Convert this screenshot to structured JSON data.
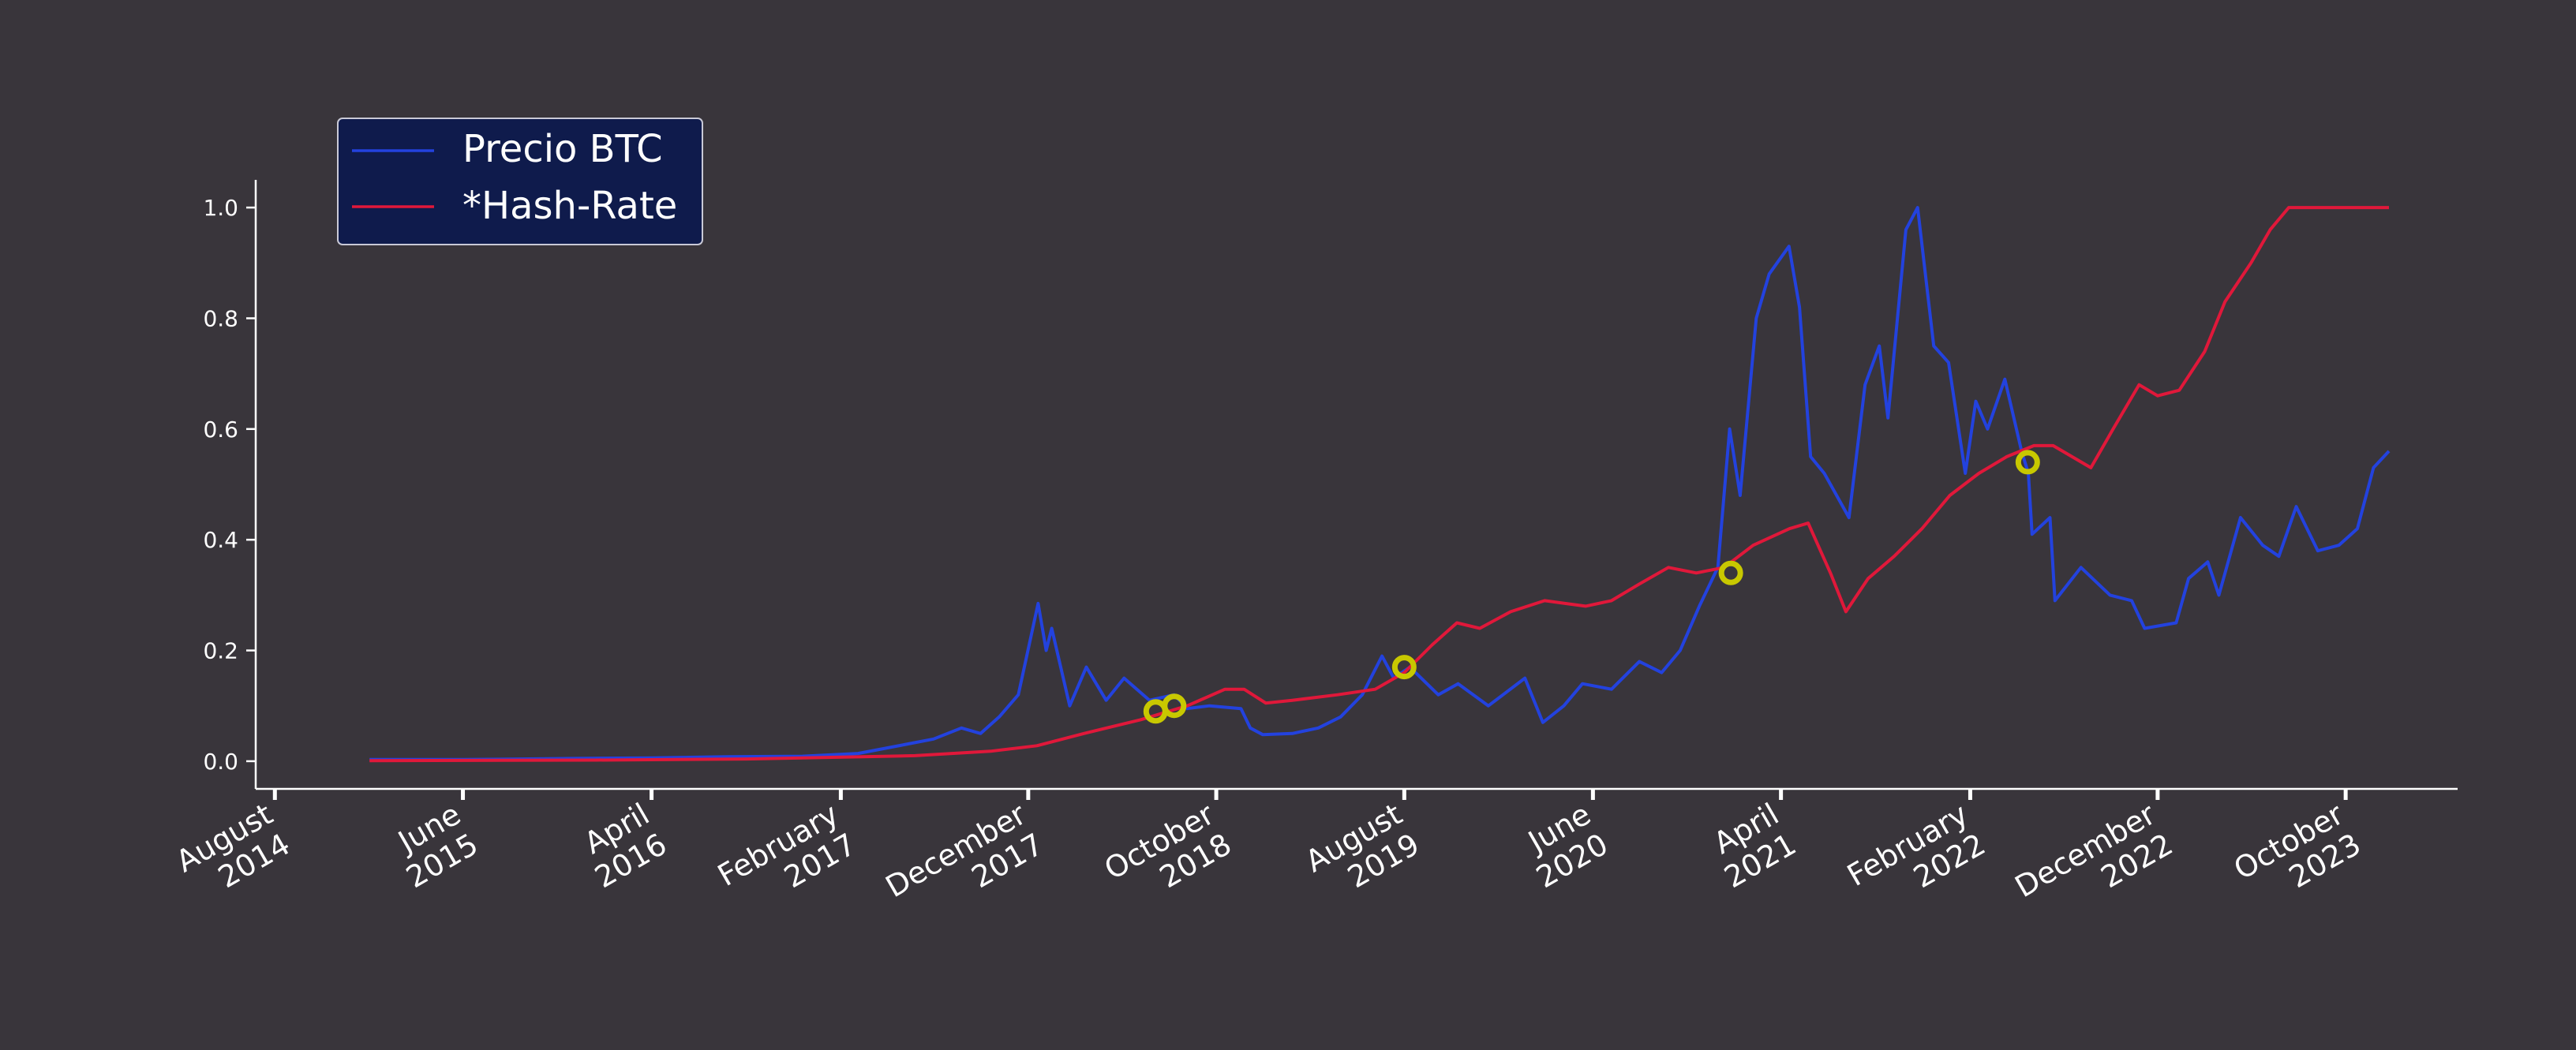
{
  "chart_data": {
    "type": "line",
    "title": "",
    "xlabel": "",
    "ylabel": "",
    "ylim": [
      -0.05,
      1.05
    ],
    "xlim": [
      "2014-07-01",
      "2024-03-30"
    ],
    "grid": false,
    "legend_position": "top-left",
    "background": "#39353b",
    "y_ticks": [
      "0.0",
      "0.2",
      "0.4",
      "0.6",
      "0.8",
      "1.0"
    ],
    "x_ticks": [
      {
        "date": "2014-08-01",
        "line1": "August",
        "line2": "2014"
      },
      {
        "date": "2015-06-01",
        "line1": "June",
        "line2": "2015"
      },
      {
        "date": "2016-04-01",
        "line1": "April",
        "line2": "2016"
      },
      {
        "date": "2017-02-01",
        "line1": "February",
        "line2": "2017"
      },
      {
        "date": "2017-12-01",
        "line1": "December",
        "line2": "2017"
      },
      {
        "date": "2018-10-01",
        "line1": "October",
        "line2": "2018"
      },
      {
        "date": "2019-08-01",
        "line1": "August",
        "line2": "2019"
      },
      {
        "date": "2020-06-01",
        "line1": "June",
        "line2": "2020"
      },
      {
        "date": "2021-04-01",
        "line1": "April",
        "line2": "2021"
      },
      {
        "date": "2022-02-01",
        "line1": "February",
        "line2": "2022"
      },
      {
        "date": "2022-12-01",
        "line1": "December",
        "line2": "2022"
      },
      {
        "date": "2023-10-01",
        "line1": "October",
        "line2": "2023"
      }
    ],
    "series": [
      {
        "name": "Precio BTC",
        "color": "#2342de",
        "points": [
          [
            "2015-01-01",
            0.003
          ],
          [
            "2015-06-01",
            0.003
          ],
          [
            "2015-12-01",
            0.005
          ],
          [
            "2016-04-01",
            0.006
          ],
          [
            "2016-08-01",
            0.008
          ],
          [
            "2016-12-01",
            0.009
          ],
          [
            "2017-03-01",
            0.014
          ],
          [
            "2017-05-15",
            0.03
          ],
          [
            "2017-07-01",
            0.04
          ],
          [
            "2017-08-15",
            0.06
          ],
          [
            "2017-09-15",
            0.05
          ],
          [
            "2017-10-15",
            0.08
          ],
          [
            "2017-11-15",
            0.12
          ],
          [
            "2017-12-17",
            0.285
          ],
          [
            "2017-12-30",
            0.2
          ],
          [
            "2018-01-08",
            0.24
          ],
          [
            "2018-02-06",
            0.1
          ],
          [
            "2018-03-05",
            0.17
          ],
          [
            "2018-04-06",
            0.11
          ],
          [
            "2018-05-05",
            0.15
          ],
          [
            "2018-06-15",
            0.11
          ],
          [
            "2018-07-25",
            0.12
          ],
          [
            "2018-08-15",
            0.095
          ],
          [
            "2018-09-20",
            0.1
          ],
          [
            "2018-11-10",
            0.095
          ],
          [
            "2018-11-25",
            0.06
          ],
          [
            "2018-12-15",
            0.048
          ],
          [
            "2019-02-01",
            0.05
          ],
          [
            "2019-03-15",
            0.06
          ],
          [
            "2019-04-20",
            0.08
          ],
          [
            "2019-05-25",
            0.12
          ],
          [
            "2019-06-26",
            0.19
          ],
          [
            "2019-07-15",
            0.15
          ],
          [
            "2019-08-10",
            0.17
          ],
          [
            "2019-09-25",
            0.12
          ],
          [
            "2019-10-27",
            0.14
          ],
          [
            "2019-12-15",
            0.1
          ],
          [
            "2020-02-12",
            0.15
          ],
          [
            "2020-03-12",
            0.07
          ],
          [
            "2020-04-15",
            0.1
          ],
          [
            "2020-05-15",
            0.14
          ],
          [
            "2020-07-01",
            0.13
          ],
          [
            "2020-08-15",
            0.18
          ],
          [
            "2020-09-20",
            0.16
          ],
          [
            "2020-10-20",
            0.2
          ],
          [
            "2020-11-20",
            0.28
          ],
          [
            "2020-12-20",
            0.35
          ],
          [
            "2021-01-08",
            0.6
          ],
          [
            "2021-01-25",
            0.48
          ],
          [
            "2021-02-20",
            0.8
          ],
          [
            "2021-03-13",
            0.88
          ],
          [
            "2021-04-14",
            0.93
          ],
          [
            "2021-05-01",
            0.82
          ],
          [
            "2021-05-19",
            0.55
          ],
          [
            "2021-06-10",
            0.52
          ],
          [
            "2021-07-20",
            0.44
          ],
          [
            "2021-08-15",
            0.68
          ],
          [
            "2021-09-07",
            0.75
          ],
          [
            "2021-09-21",
            0.62
          ],
          [
            "2021-10-20",
            0.96
          ],
          [
            "2021-11-08",
            1.0
          ],
          [
            "2021-12-04",
            0.75
          ],
          [
            "2021-12-28",
            0.72
          ],
          [
            "2022-01-24",
            0.52
          ],
          [
            "2022-02-10",
            0.65
          ],
          [
            "2022-03-01",
            0.6
          ],
          [
            "2022-03-29",
            0.69
          ],
          [
            "2022-04-25",
            0.56
          ],
          [
            "2022-05-06",
            0.52
          ],
          [
            "2022-05-12",
            0.41
          ],
          [
            "2022-06-10",
            0.44
          ],
          [
            "2022-06-18",
            0.29
          ],
          [
            "2022-07-30",
            0.35
          ],
          [
            "2022-09-15",
            0.3
          ],
          [
            "2022-10-20",
            0.29
          ],
          [
            "2022-11-10",
            0.24
          ],
          [
            "2022-12-31",
            0.25
          ],
          [
            "2023-01-20",
            0.33
          ],
          [
            "2023-02-20",
            0.36
          ],
          [
            "2023-03-10",
            0.3
          ],
          [
            "2023-04-14",
            0.44
          ],
          [
            "2023-05-20",
            0.39
          ],
          [
            "2023-06-15",
            0.37
          ],
          [
            "2023-07-13",
            0.46
          ],
          [
            "2023-08-17",
            0.38
          ],
          [
            "2023-09-20",
            0.39
          ],
          [
            "2023-10-20",
            0.42
          ],
          [
            "2023-11-15",
            0.53
          ],
          [
            "2023-12-10",
            0.56
          ]
        ]
      },
      {
        "name": "*Hash-Rate",
        "color": "#e0183a",
        "points": [
          [
            "2015-01-01",
            0.001
          ],
          [
            "2016-01-01",
            0.002
          ],
          [
            "2016-09-01",
            0.004
          ],
          [
            "2017-06-01",
            0.01
          ],
          [
            "2017-10-01",
            0.018
          ],
          [
            "2017-12-15",
            0.028
          ],
          [
            "2018-03-01",
            0.05
          ],
          [
            "2018-06-01",
            0.075
          ],
          [
            "2018-08-15",
            0.1
          ],
          [
            "2018-10-15",
            0.13
          ],
          [
            "2018-11-15",
            0.13
          ],
          [
            "2018-12-20",
            0.105
          ],
          [
            "2019-02-01",
            0.11
          ],
          [
            "2019-04-15",
            0.12
          ],
          [
            "2019-06-15",
            0.13
          ],
          [
            "2019-08-01",
            0.16
          ],
          [
            "2019-09-15",
            0.21
          ],
          [
            "2019-10-25",
            0.25
          ],
          [
            "2019-12-01",
            0.24
          ],
          [
            "2020-01-20",
            0.27
          ],
          [
            "2020-03-15",
            0.29
          ],
          [
            "2020-05-20",
            0.28
          ],
          [
            "2020-07-01",
            0.29
          ],
          [
            "2020-08-15",
            0.32
          ],
          [
            "2020-10-01",
            0.35
          ],
          [
            "2020-11-15",
            0.34
          ],
          [
            "2020-12-30",
            0.35
          ],
          [
            "2021-02-15",
            0.39
          ],
          [
            "2021-04-15",
            0.42
          ],
          [
            "2021-05-15",
            0.43
          ],
          [
            "2021-06-20",
            0.34
          ],
          [
            "2021-07-15",
            0.27
          ],
          [
            "2021-08-20",
            0.33
          ],
          [
            "2021-10-01",
            0.37
          ],
          [
            "2021-11-15",
            0.42
          ],
          [
            "2021-12-30",
            0.48
          ],
          [
            "2022-02-15",
            0.52
          ],
          [
            "2022-04-01",
            0.55
          ],
          [
            "2022-05-15",
            0.57
          ],
          [
            "2022-06-15",
            0.57
          ],
          [
            "2022-08-15",
            0.53
          ],
          [
            "2022-09-20",
            0.6
          ],
          [
            "2022-11-01",
            0.68
          ],
          [
            "2022-12-01",
            0.66
          ],
          [
            "2023-01-05",
            0.67
          ],
          [
            "2023-02-15",
            0.74
          ],
          [
            "2023-03-20",
            0.83
          ],
          [
            "2023-05-01",
            0.9
          ],
          [
            "2023-06-01",
            0.96
          ],
          [
            "2023-07-01",
            1.0
          ],
          [
            "2023-12-10",
            1.0
          ]
        ]
      }
    ],
    "crossovers": [
      {
        "date": "2018-06-25",
        "value": 0.09
      },
      {
        "date": "2018-07-25",
        "value": 0.1
      },
      {
        "date": "2019-08-01",
        "value": 0.17
      },
      {
        "date": "2021-01-10",
        "value": 0.34
      },
      {
        "date": "2022-05-05",
        "value": 0.54
      }
    ],
    "crossover_color": "#c8c800"
  }
}
